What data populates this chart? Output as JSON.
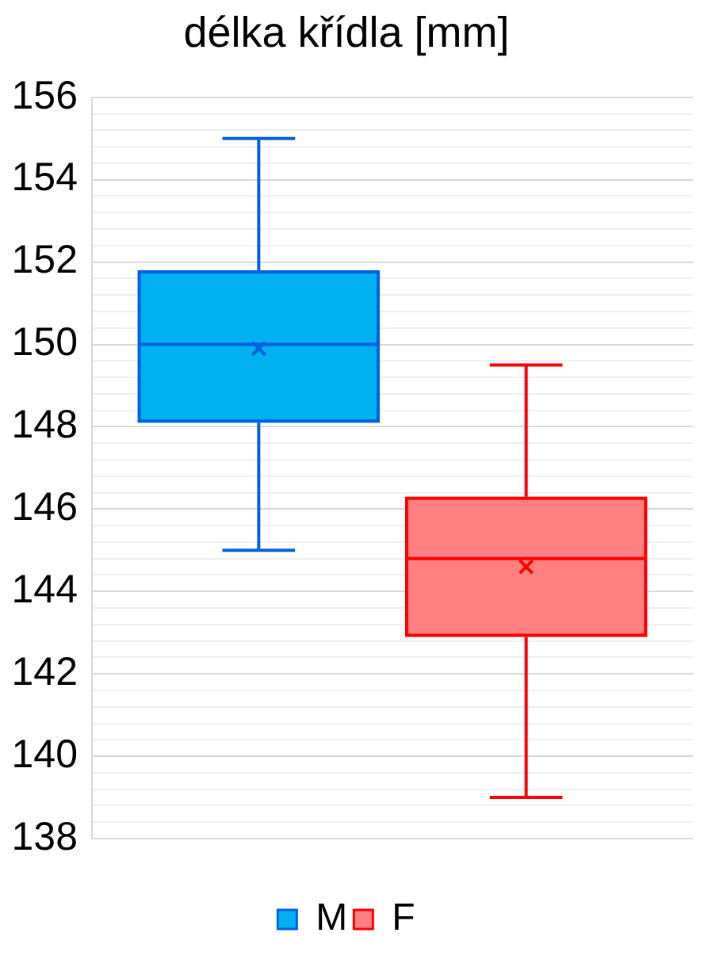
{
  "chart_data": {
    "type": "box",
    "title": "délka křídla [mm]",
    "categories": [
      null
    ],
    "series": [
      {
        "name": "M",
        "color": "#00b0f0",
        "boxes": [
          {
            "low": 145,
            "q1": 148.1,
            "median": 150,
            "q3": 151.8,
            "high": 155,
            "mean": 149.9
          }
        ]
      },
      {
        "name": "F",
        "color": "#ff8080",
        "boxes": [
          {
            "low": 139,
            "q1": 142.9,
            "median": 144.8,
            "q3": 146.3,
            "high": 149.5,
            "mean": 144.6
          }
        ]
      }
    ],
    "ylim": [
      138,
      156
    ],
    "yticks": [
      138,
      {
        "value": 138.4,
        "label": null
      },
      {
        "value": 138.8,
        "label": null
      },
      {
        "value": 139.2,
        "label": null
      },
      {
        "value": 139.6,
        "label": null
      },
      140,
      {
        "value": 140.4,
        "label": null
      },
      {
        "value": 140.8,
        "label": null
      },
      {
        "value": 141.2,
        "label": null
      },
      {
        "value": 141.6,
        "label": null
      },
      142,
      {
        "value": 142.4,
        "label": null
      },
      {
        "value": 142.8,
        "label": null
      },
      {
        "value": 143.2,
        "label": null
      },
      {
        "value": 143.6,
        "label": null
      },
      144,
      {
        "value": 144.4,
        "label": null
      },
      {
        "value": 144.8,
        "label": null
      },
      {
        "value": 145.2,
        "label": null
      },
      {
        "value": 145.6,
        "label": null
      },
      146,
      {
        "value": 146.4,
        "label": null
      },
      {
        "value": 146.8,
        "label": null
      },
      {
        "value": 147.2,
        "label": null
      },
      {
        "value": 147.6,
        "label": null
      },
      148,
      {
        "value": 148.4,
        "label": null
      },
      {
        "value": 148.8,
        "label": null
      },
      {
        "value": 149.2,
        "label": null
      },
      {
        "value": 149.6,
        "label": null
      },
      150,
      {
        "value": 150.4,
        "label": null
      },
      {
        "value": 150.8,
        "label": null
      },
      {
        "value": 151.2,
        "label": null
      },
      {
        "value": 151.6,
        "label": null
      },
      152,
      {
        "value": 152.4,
        "label": null
      },
      {
        "value": 152.8,
        "label": null
      },
      {
        "value": 153.2,
        "label": null
      },
      {
        "value": 153.6,
        "label": null
      },
      154,
      {
        "value": 154.4,
        "label": null
      },
      {
        "value": 154.8,
        "label": null
      },
      {
        "value": 155.2,
        "label": null
      },
      {
        "value": 155.6,
        "label": null
      },
      156
    ],
    "grid": "y",
    "legend": "bottom",
    "tick_labels": "y"
  }
}
